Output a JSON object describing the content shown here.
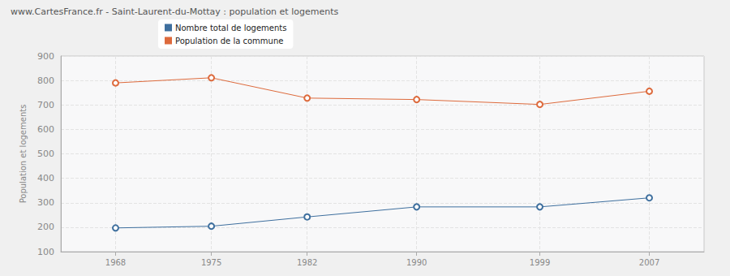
{
  "chart_data": {
    "type": "line",
    "title": "www.CartesFrance.fr - Saint-Laurent-du-Mottay : population et logements",
    "y_label": "Population et logements",
    "x": [
      1968,
      1975,
      1982,
      1990,
      1999,
      2007
    ],
    "xlim": [
      1964,
      2011
    ],
    "xticks": [
      1968,
      1975,
      1982,
      1990,
      1999,
      2007
    ],
    "ylim": [
      100,
      900
    ],
    "yticks": [
      100,
      200,
      300,
      400,
      500,
      600,
      700,
      800,
      900
    ],
    "grid": true,
    "legend": "top-left",
    "marker": "emptyCircle",
    "series": [
      {
        "name": "Nombre total de logements",
        "color": "#3e6f9e",
        "values": [
          197,
          204,
          242,
          283,
          283,
          320
        ]
      },
      {
        "name": "Population de la commune",
        "color": "#dd6a3c",
        "values": [
          790,
          811,
          728,
          722,
          702,
          756
        ]
      }
    ]
  }
}
